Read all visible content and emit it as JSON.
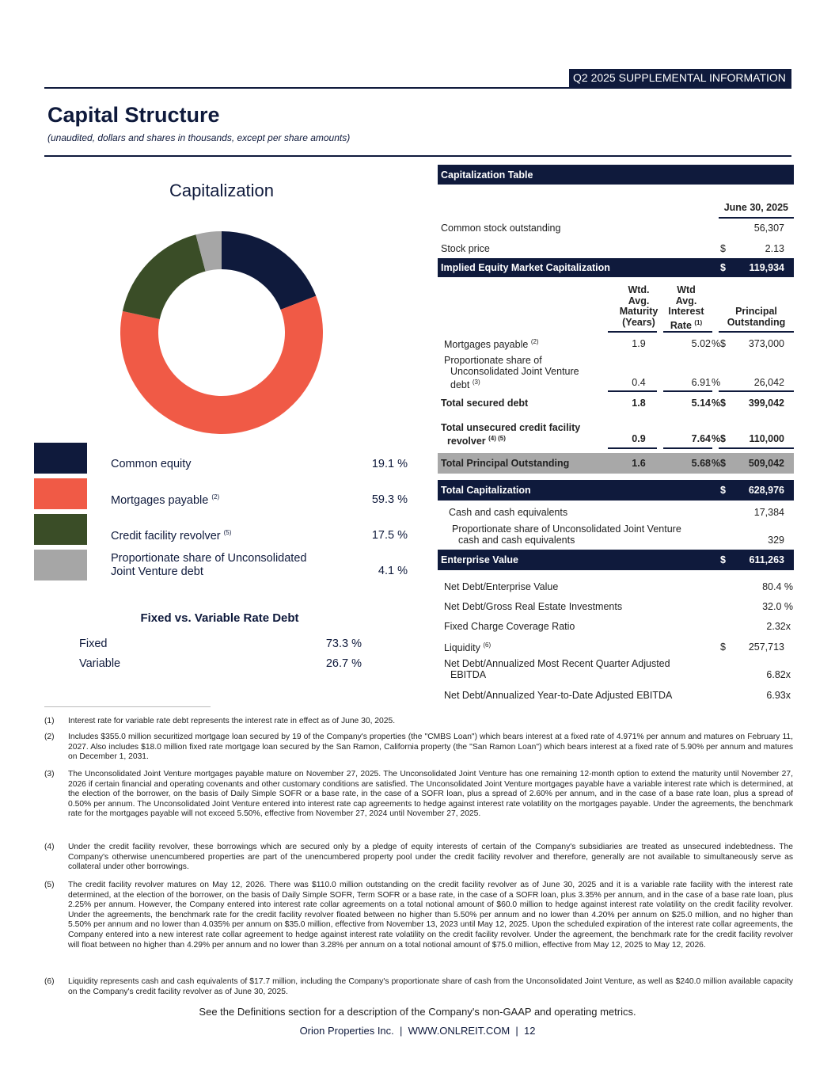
{
  "header": {
    "tag": "Q2 2025 SUPPLEMENTAL INFORMATION",
    "title": "Capital Structure",
    "subtitle": "(unaudited, dollars and shares in thousands, except per share amounts)"
  },
  "capitalization_chart": {
    "title": "Capitalization",
    "type": "donut",
    "slices": [
      {
        "label": "Common equity",
        "sup": "",
        "value": 19.1,
        "display": "19.1 %",
        "color": "#0f1a3c"
      },
      {
        "label": "Mortgages payable",
        "sup": "(2)",
        "value": 59.3,
        "display": "59.3 %",
        "color": "#f05a46"
      },
      {
        "label": "Credit facility revolver",
        "sup": "(5)",
        "value": 17.5,
        "display": "17.5 %",
        "color": "#3a4d27"
      },
      {
        "label_line1": "Proportionate share of Unconsolidated",
        "label_line2": "Joint Venture debt",
        "sup": "",
        "value": 4.1,
        "display": "4.1 %",
        "color": "#a6a6a6"
      }
    ]
  },
  "fixed_variable": {
    "title": "Fixed vs. Variable Rate Debt",
    "rows": [
      {
        "label": "Fixed",
        "value": "73.3 %"
      },
      {
        "label": "Variable",
        "value": "26.7 %"
      }
    ]
  },
  "table": {
    "title": "Capitalization Table",
    "date_header": "June 30, 2025",
    "common_stock": {
      "label": "Common stock outstanding",
      "value": "56,307"
    },
    "stock_price": {
      "label": "Stock price",
      "dollar": "$",
      "value": "2.13"
    },
    "implied_equity": {
      "label": "Implied Equity Market Capitalization",
      "dollar": "$",
      "value": "119,934"
    },
    "col_headers": {
      "maturity": [
        "Wtd.",
        "Avg.",
        "Maturity",
        "(Years)"
      ],
      "rate": [
        "Wtd",
        "Avg.",
        "Interest",
        "Rate"
      ],
      "rate_sup": "(1)",
      "principal": [
        "Principal",
        "Outstanding"
      ]
    },
    "mortgages": {
      "label": "Mortgages payable",
      "sup": "(2)",
      "maturity": "1.9",
      "rate": "5.02",
      "pct": "%",
      "dollar": "$",
      "value": "373,000"
    },
    "jv_debt": {
      "line1": "Proportionate share of",
      "line2": "Unconsolidated Joint Venture",
      "line3": "debt",
      "sup": "(3)",
      "maturity": "0.4",
      "rate": "6.91",
      "pct": "%",
      "value": "26,042"
    },
    "total_secured": {
      "label": "Total secured debt",
      "maturity": "1.8",
      "rate": "5.14",
      "pct": "%",
      "dollar": "$",
      "value": "399,042"
    },
    "unsecured": {
      "line1": "Total unsecured credit facility",
      "line2": "revolver",
      "sup": "(4) (5)",
      "maturity": "0.9",
      "rate": "7.64",
      "pct": "%",
      "dollar": "$",
      "value": "110,000"
    },
    "total_principal": {
      "label": "Total Principal Outstanding",
      "maturity": "1.6",
      "rate": "5.68",
      "pct": "%",
      "dollar": "$",
      "value": "509,042"
    },
    "total_cap": {
      "label": "Total Capitalization",
      "dollar": "$",
      "value": "628,976"
    },
    "cash": {
      "label": "Cash and cash equivalents",
      "value": "17,384"
    },
    "jv_cash": {
      "line1": "Proportionate share of Unconsolidated Joint Venture",
      "line2": "cash and cash equivalents",
      "value": "329"
    },
    "enterprise_value": {
      "label": "Enterprise Value",
      "dollar": "$",
      "value": "611,263"
    },
    "metrics": [
      {
        "label": "Net Debt/Enterprise Value",
        "value": "80.4 %"
      },
      {
        "label": "Net Debt/Gross Real Estate Investments",
        "value": "32.0 %"
      },
      {
        "label": "Fixed Charge Coverage Ratio",
        "value": "2.32x"
      },
      {
        "label": "Liquidity",
        "sup": "(6)",
        "dollar": "$",
        "value": "257,713"
      },
      {
        "line1": "Net Debt/Annualized Most Recent Quarter Adjusted",
        "line2": "EBITDA",
        "value": "6.82x"
      },
      {
        "label": "Net Debt/Annualized Year-to-Date Adjusted EBITDA",
        "value": "6.93x"
      }
    ]
  },
  "footnotes": [
    {
      "n": "(1)",
      "text": "Interest rate for variable rate debt represents the interest rate in effect as of June 30, 2025."
    },
    {
      "n": "(2)",
      "text": "Includes $355.0 million securitized mortgage loan secured by 19 of the Company's properties (the \"CMBS Loan\") which bears interest at a fixed rate of 4.971% per annum and matures on February 11, 2027. Also includes $18.0 million fixed rate mortgage loan secured by the San Ramon, California property (the \"San Ramon Loan\") which bears interest at a fixed rate of 5.90% per annum and matures on December 1, 2031."
    },
    {
      "n": "(3)",
      "text": "The Unconsolidated Joint Venture mortgages payable mature on November 27, 2025. The Unconsolidated Joint Venture has one remaining 12-month option to extend the maturity until November 27, 2026 if certain financial and operating covenants and other customary conditions are satisfied. The Unconsolidated Joint Venture mortgages payable have a variable interest rate which is determined, at the election of the borrower, on the basis of Daily Simple SOFR or a base rate, in the case of a SOFR loan, plus a spread of 2.60% per annum, and in the case of a base rate loan, plus a spread of 0.50% per annum. The Unconsolidated Joint Venture entered into interest rate cap agreements to hedge against interest rate volatility on the mortgages payable. Under the agreements, the benchmark rate for the mortgages payable will not exceed 5.50%, effective from November 27, 2024 until November 27, 2025."
    },
    {
      "n": "(4)",
      "text": "Under the credit facility revolver, these borrowings which are secured only by a pledge of equity interests of certain of the Company's subsidiaries are treated as unsecured indebtedness. The Company's otherwise unencumbered properties are part of the unencumbered property pool under the credit facility revolver and therefore, generally are not available to simultaneously serve as collateral under other borrowings."
    },
    {
      "n": "(5)",
      "text": "The credit facility revolver matures on May 12, 2026. There was $110.0 million outstanding on the credit facility revolver as of June 30, 2025 and it is a variable rate facility with the interest rate determined, at the election of the borrower, on the basis of Daily Simple SOFR, Term SOFR or a base rate, in the case of a SOFR loan, plus 3.35% per annum, and in the case of a base rate loan, plus 2.25% per annum. However, the Company entered into interest rate collar agreements on a total notional amount of $60.0 million to hedge against interest rate volatility on the credit facility revolver. Under the agreements, the benchmark rate for the credit facility revolver floated between no higher than 5.50% per annum and no lower than 4.20% per annum on $25.0 million, and no higher than 5.50% per annum and no lower than 4.035% per annum on $35.0 million, effective from November 13, 2023 until May 12, 2025. Upon the scheduled expiration of the interest rate collar agreements, the Company entered into a new interest rate collar agreement to hedge against interest rate volatility on the credit facility revolver. Under the agreement, the benchmark rate for the credit facility revolver will float between no higher than 4.29% per annum and no lower than 3.28% per annum on a total notional amount of $75.0 million, effective from May 12, 2025 to May 12, 2026."
    },
    {
      "n": "(6)",
      "text": "Liquidity represents cash and cash equivalents of $17.7 million, including the Company's proportionate share of cash from the Unconsolidated Joint Venture, as well as $240.0 million available capacity on the Company's credit facility revolver as of June 30, 2025."
    }
  ],
  "see_definitions": "See the Definitions section for a description of the Company's non-GAAP and operating metrics.",
  "footer": "Orion Properties Inc.  |  WWW.ONLREIT.COM  |  12"
}
